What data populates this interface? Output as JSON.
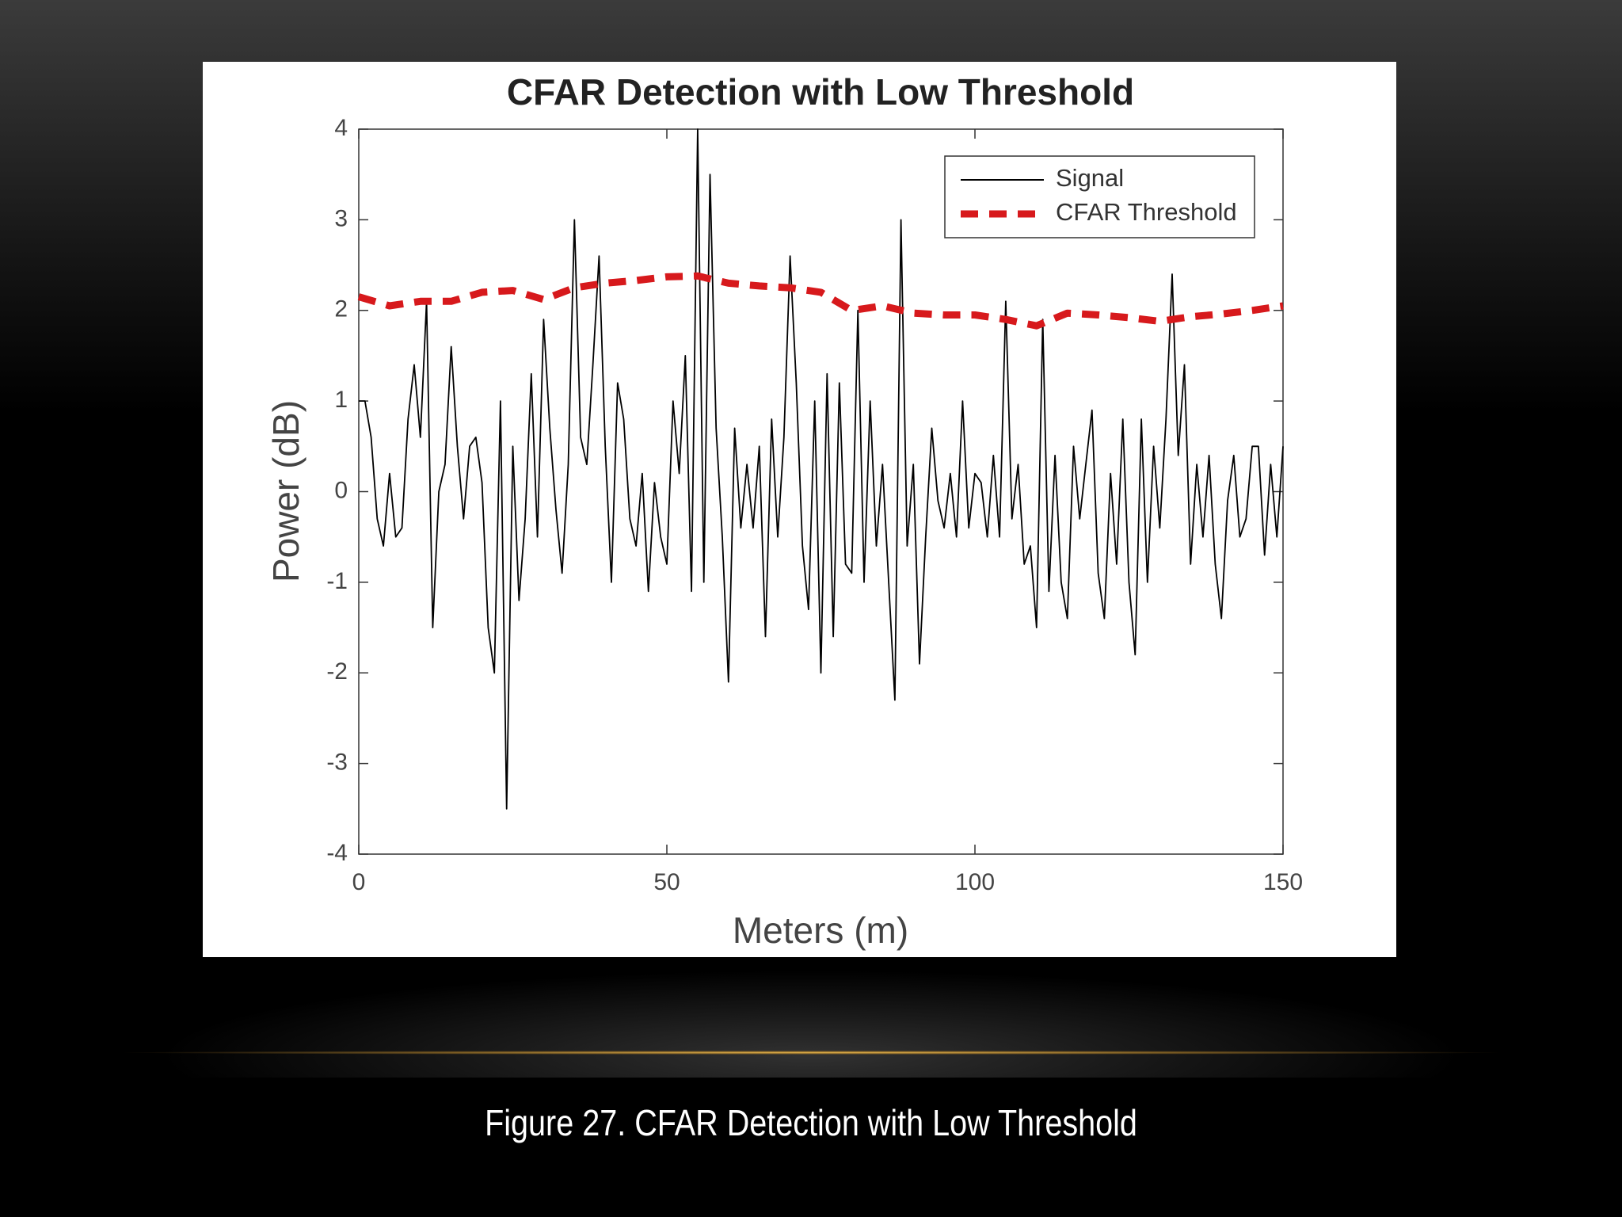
{
  "chart_data": {
    "type": "line",
    "title": "CFAR Detection with Low Threshold",
    "xlabel": "Meters (m)",
    "ylabel": "Power (dB)",
    "xlim": [
      0,
      150
    ],
    "xticks": [
      0,
      50,
      100,
      150
    ],
    "ylim": [
      -4,
      4
    ],
    "yticks": [
      -4,
      -3,
      -2,
      -1,
      0,
      1,
      2,
      3,
      4
    ],
    "grid": false,
    "legend": "upper right",
    "series": [
      {
        "name": "Signal",
        "color": "#000000",
        "dash": false,
        "x": [
          0,
          1,
          2,
          3,
          4,
          5,
          6,
          7,
          8,
          9,
          10,
          11,
          12,
          13,
          14,
          15,
          16,
          17,
          18,
          19,
          20,
          21,
          22,
          23,
          24,
          25,
          26,
          27,
          28,
          29,
          30,
          31,
          32,
          33,
          34,
          35,
          36,
          37,
          38,
          39,
          40,
          41,
          42,
          43,
          44,
          45,
          46,
          47,
          48,
          49,
          50,
          51,
          52,
          53,
          54,
          55,
          56,
          57,
          58,
          59,
          60,
          61,
          62,
          63,
          64,
          65,
          66,
          67,
          68,
          69,
          70,
          71,
          72,
          73,
          74,
          75,
          76,
          77,
          78,
          79,
          80,
          81,
          82,
          83,
          84,
          85,
          86,
          87,
          88,
          89,
          90,
          91,
          92,
          93,
          94,
          95,
          96,
          97,
          98,
          99,
          100,
          101,
          102,
          103,
          104,
          105,
          106,
          107,
          108,
          109,
          110,
          111,
          112,
          113,
          114,
          115,
          116,
          117,
          118,
          119,
          120,
          121,
          122,
          123,
          124,
          125,
          126,
          127,
          128,
          129,
          130,
          131,
          132,
          133,
          134,
          135,
          136,
          137,
          138,
          139,
          140,
          141,
          142,
          143,
          144,
          145,
          146,
          147,
          148,
          149,
          150
        ],
        "values": [
          1.0,
          1.0,
          0.6,
          -0.3,
          -0.6,
          0.2,
          -0.5,
          -0.4,
          0.8,
          1.4,
          0.6,
          2.1,
          -1.5,
          0,
          0.3,
          1.6,
          0.5,
          -0.3,
          0.5,
          0.6,
          0.1,
          -1.5,
          -2.0,
          1.0,
          -3.5,
          0.5,
          -1.2,
          -0.3,
          1.3,
          -0.5,
          1.9,
          0.7,
          -0.2,
          -0.9,
          0.3,
          3.0,
          0.6,
          0.3,
          1.4,
          2.6,
          0.5,
          -1.0,
          1.2,
          0.8,
          -0.3,
          -0.6,
          0.2,
          -1.1,
          0.1,
          -0.5,
          -0.8,
          1.0,
          0.2,
          1.5,
          -1.1,
          4.0,
          -1.0,
          3.5,
          0.7,
          -0.5,
          -2.1,
          0.7,
          -0.4,
          0.3,
          -0.4,
          0.5,
          -1.6,
          0.8,
          -0.5,
          0.6,
          2.6,
          1.2,
          -0.6,
          -1.3,
          1.0,
          -2.0,
          1.3,
          -1.6,
          1.2,
          -0.8,
          -0.9,
          2.0,
          -1.0,
          1.0,
          -0.6,
          0.3,
          -1.0,
          -2.3,
          3.0,
          -0.6,
          0.3,
          -1.9,
          -0.5,
          0.7,
          -0.1,
          -0.4,
          0.2,
          -0.5,
          1.0,
          -0.4,
          0.2,
          0.1,
          -0.5,
          0.4,
          -0.5,
          2.1,
          -0.3,
          0.3,
          -0.8,
          -0.6,
          -1.5,
          1.9,
          -1.1,
          0.4,
          -1.0,
          -1.4,
          0.5,
          -0.3,
          0.3,
          0.9,
          -0.9,
          -1.4,
          0.2,
          -0.8,
          0.8,
          -1.0,
          -1.8,
          0.8,
          -1.0,
          0.5,
          -0.4,
          0.8,
          2.4,
          0.4,
          1.4,
          -0.8,
          0.3,
          -0.5,
          0.4,
          -0.8,
          -1.4,
          -0.1,
          0.4,
          -0.5,
          -0.3,
          0.5,
          0.5,
          -0.7,
          0.3,
          -0.5,
          0.5
        ]
      },
      {
        "name": "CFAR Threshold",
        "color": "#d7191c",
        "dash": true,
        "x": [
          0,
          5,
          10,
          15,
          20,
          25,
          30,
          35,
          40,
          45,
          50,
          55,
          60,
          65,
          70,
          75,
          80,
          85,
          90,
          95,
          100,
          105,
          110,
          115,
          120,
          125,
          130,
          135,
          140,
          145,
          150
        ],
        "values": [
          2.15,
          2.05,
          2.1,
          2.1,
          2.2,
          2.22,
          2.12,
          2.25,
          2.3,
          2.33,
          2.37,
          2.38,
          2.3,
          2.27,
          2.25,
          2.2,
          2.0,
          2.05,
          1.97,
          1.95,
          1.95,
          1.9,
          1.83,
          1.97,
          1.95,
          1.92,
          1.88,
          1.93,
          1.96,
          2.0,
          2.05
        ]
      }
    ]
  },
  "caption": "Figure 27. CFAR Detection with Low Threshold"
}
